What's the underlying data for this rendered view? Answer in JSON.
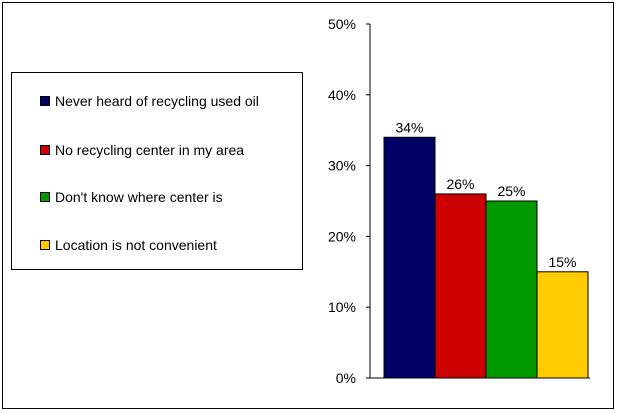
{
  "chart_data": {
    "type": "bar",
    "categories": [
      "Never heard of recycling used oil",
      "No recycling center in my area",
      "Don't know where center is",
      "Location is not convenient"
    ],
    "values": [
      34,
      26,
      25,
      15
    ],
    "value_labels": [
      "34%",
      "26%",
      "25%",
      "15%"
    ],
    "colors": [
      "#000066",
      "#CC0000",
      "#009900",
      "#FFCC00"
    ],
    "ylim": [
      0,
      50
    ],
    "yticks": [
      0,
      10,
      20,
      30,
      40,
      50
    ],
    "ytick_labels": [
      "0%",
      "10%",
      "20%",
      "30%",
      "40%",
      "50%"
    ],
    "grid": false,
    "legend": "left"
  }
}
